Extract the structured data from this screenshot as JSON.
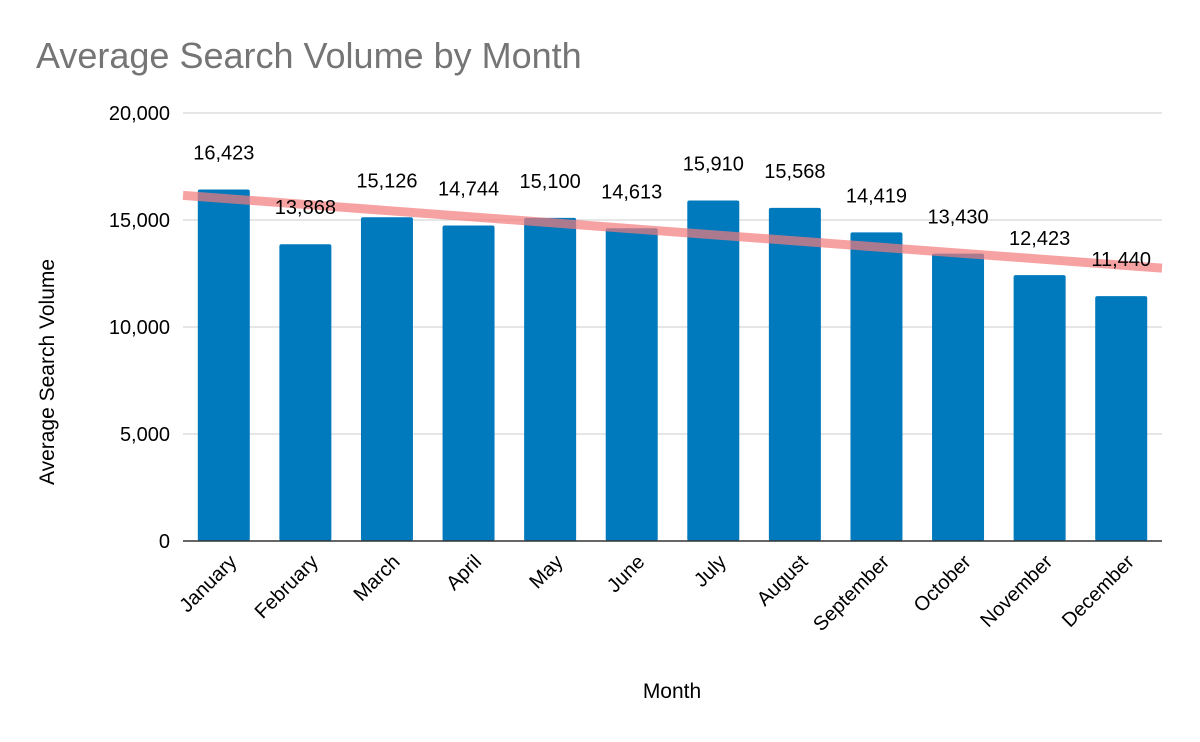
{
  "chart_data": {
    "type": "bar",
    "title": "Average Search Volume by Month",
    "xlabel": "Month",
    "ylabel": "Average Search Volume",
    "categories": [
      "January",
      "February",
      "March",
      "April",
      "May",
      "June",
      "July",
      "August",
      "September",
      "October",
      "November",
      "December"
    ],
    "values": [
      16423,
      13868,
      15126,
      14744,
      15100,
      14613,
      15910,
      15568,
      14419,
      13430,
      12423,
      11440
    ],
    "data_labels": [
      "16,423",
      "13,868",
      "15,126",
      "14,744",
      "15,100",
      "14,613",
      "15,910",
      "15,568",
      "14,419",
      "13,430",
      "12,423",
      "11,440"
    ],
    "ylim": [
      0,
      20000
    ],
    "yticks": [
      0,
      5000,
      10000,
      15000,
      20000
    ],
    "ytick_labels": [
      "0",
      "5,000",
      "10,000",
      "15,000",
      "20,000"
    ],
    "trendline": {
      "type": "linear",
      "start_value": 16150,
      "end_value": 12750
    },
    "grid": true,
    "legend": "none",
    "colors": {
      "bar": "#0179bd",
      "trendline": "#f47a7a",
      "title": "#757575",
      "grid": "#cccccc",
      "axis": "#333333"
    }
  }
}
